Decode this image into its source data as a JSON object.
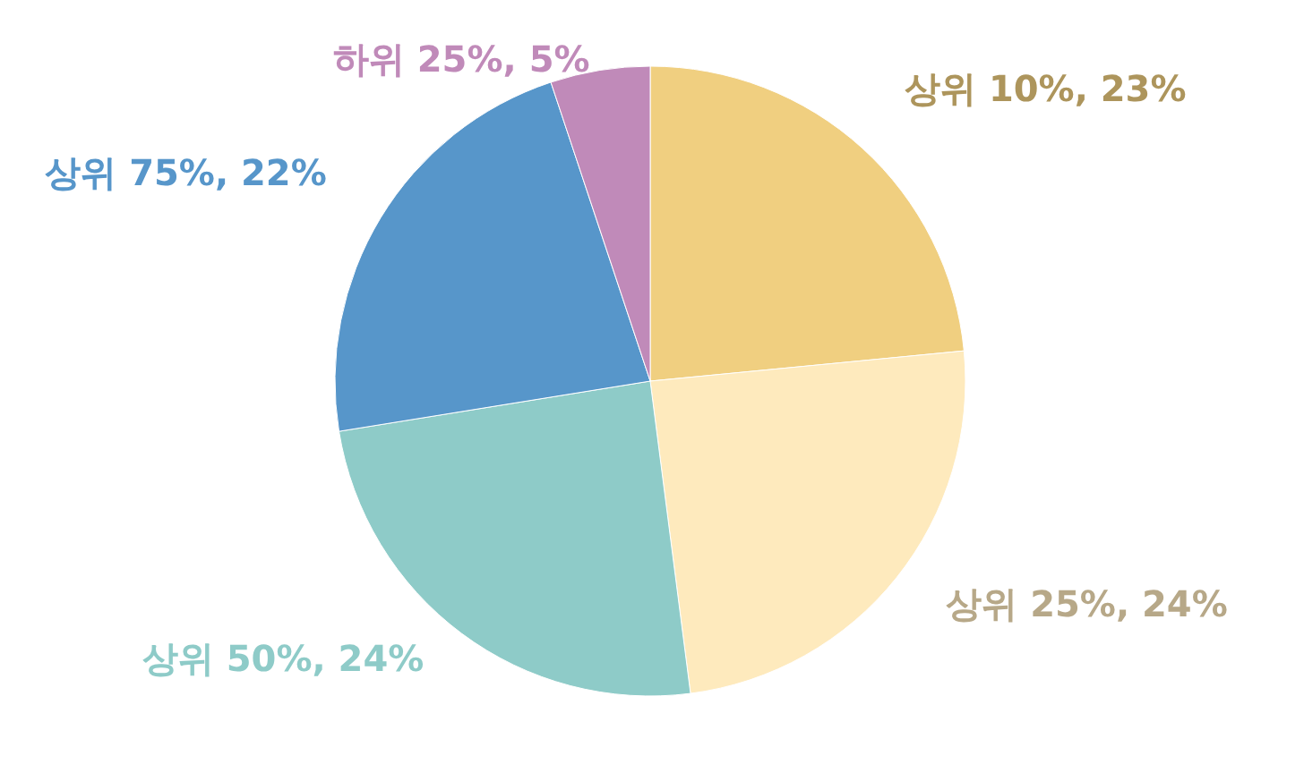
{
  "chart_data": {
    "type": "pie",
    "categories": [
      "상위 10%",
      "상위 25%",
      "상위 50%",
      "상위 75%",
      "하위 25%"
    ],
    "values": [
      23,
      24,
      24,
      22,
      5
    ],
    "value_labels": [
      "23%",
      "24%",
      "24%",
      "22%",
      "5%"
    ],
    "colors": [
      "#f0cf80",
      "#feeabd",
      "#8ecbc8",
      "#5796ca",
      "#c08ab9"
    ]
  }
}
